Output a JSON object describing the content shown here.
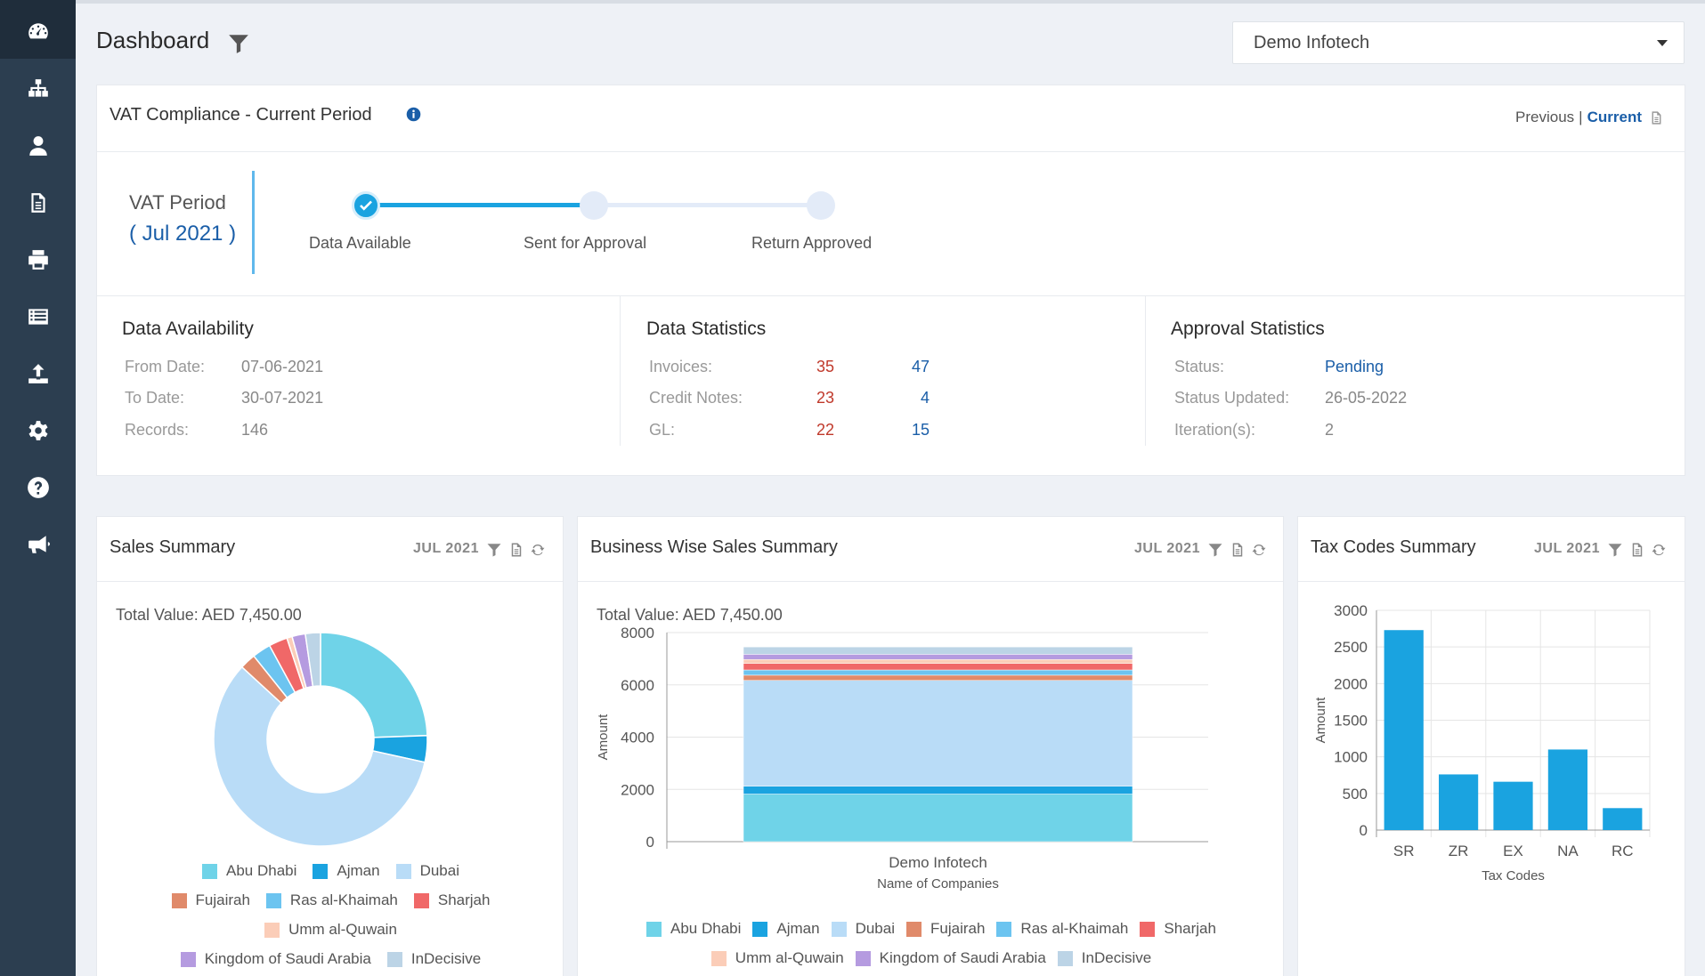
{
  "header": {
    "title": "Dashboard",
    "company_selected": "Demo Infotech"
  },
  "sidebar": {
    "icons": [
      "dashboard-gauge-icon",
      "sitemap-icon",
      "user-icon",
      "document-icon",
      "printer-icon",
      "list-icon",
      "upload-icon",
      "gear-icon",
      "help-icon",
      "megaphone-icon"
    ]
  },
  "vat_card": {
    "title": "VAT Compliance - Current Period",
    "previous_label": "Previous",
    "separator": "|",
    "current_label": "Current",
    "period_label": "VAT Period",
    "period_value": "( Jul 2021 )",
    "steps": [
      {
        "label": "Data Available",
        "done": true
      },
      {
        "label": "Sent for Approval",
        "done": false
      },
      {
        "label": "Return Approved",
        "done": false
      }
    ],
    "data_availability": {
      "title": "Data Availability",
      "rows": [
        {
          "label": "From Date:",
          "value": "07-06-2021"
        },
        {
          "label": "To Date:",
          "value": "30-07-2021"
        },
        {
          "label": "Records:",
          "value": "146"
        }
      ]
    },
    "data_statistics": {
      "title": "Data Statistics",
      "rows": [
        {
          "label": "Invoices:",
          "a": "35",
          "b": "47"
        },
        {
          "label": "Credit Notes:",
          "a": "23",
          "b": "4"
        },
        {
          "label": "GL:",
          "a": "22",
          "b": "15"
        }
      ]
    },
    "approval_statistics": {
      "title": "Approval Statistics",
      "rows": [
        {
          "label": "Status:",
          "value": "Pending"
        },
        {
          "label": "Status Updated:",
          "value": "26-05-2022"
        },
        {
          "label": "Iteration(s):",
          "value": "2"
        }
      ]
    }
  },
  "colors": {
    "Abu Dhabi": "#6fd3e8",
    "Ajman": "#1aa3e0",
    "Dubai": "#b9dcf7",
    "Fujairah": "#e08a6a",
    "Ras al-Khaimah": "#6cc4f0",
    "Sharjah": "#f06868",
    "Umm al-Quwain": "#fbcdb8",
    "Kingdom of Saudi Arabia": "#b59be0",
    "InDecisive": "#bcd4e6",
    "bar": "#1aa3e0",
    "accent": "#1a5ea8"
  },
  "sales_summary": {
    "title": "Sales Summary",
    "period": "JUL 2021",
    "total": "Total Value: AED 7,450.00",
    "legend": [
      "Abu Dhabi",
      "Ajman",
      "Dubai",
      "Fujairah",
      "Ras al-Khaimah",
      "Sharjah",
      "Umm al-Quwain",
      "Kingdom of Saudi Arabia",
      "InDecisive"
    ]
  },
  "business_summary": {
    "title": "Business Wise Sales Summary",
    "period": "JUL 2021",
    "total": "Total Value: AED 7,450.00",
    "legend": [
      "Abu Dhabi",
      "Ajman",
      "Dubai",
      "Fujairah",
      "Ras al-Khaimah",
      "Sharjah",
      "Umm al-Quwain",
      "Kingdom of Saudi Arabia",
      "InDecisive"
    ]
  },
  "tax_summary": {
    "title": "Tax Codes Summary",
    "period": "JUL 2021"
  },
  "chart_data": [
    {
      "type": "pie",
      "title": "",
      "categories": [
        "Abu Dhabi",
        "Ajman",
        "Dubai",
        "Fujairah",
        "Ras al-Khaimah",
        "Sharjah",
        "Umm al-Quwain",
        "Kingdom of Saudi Arabia",
        "InDecisive"
      ],
      "values": [
        1820,
        300,
        4350,
        180,
        210,
        210,
        60,
        150,
        170
      ]
    },
    {
      "type": "bar",
      "title": "",
      "xlabel": "Name of Companies",
      "ylabel": "Amount",
      "categories": [
        "Demo Infotech"
      ],
      "stacked": true,
      "ylim": [
        0,
        8000
      ],
      "yticks": [
        0,
        2000,
        4000,
        6000,
        8000
      ],
      "series": [
        {
          "name": "Abu Dhabi",
          "values": [
            1820
          ]
        },
        {
          "name": "Ajman",
          "values": [
            300
          ]
        },
        {
          "name": "Dubai",
          "values": [
            4050
          ]
        },
        {
          "name": "Fujairah",
          "values": [
            200
          ]
        },
        {
          "name": "Ras al-Khaimah",
          "values": [
            200
          ]
        },
        {
          "name": "Sharjah",
          "values": [
            250
          ]
        },
        {
          "name": "Umm al-Quwain",
          "values": [
            150
          ]
        },
        {
          "name": "Kingdom of Saudi Arabia",
          "values": [
            200
          ]
        },
        {
          "name": "InDecisive",
          "values": [
            280
          ]
        }
      ]
    },
    {
      "type": "bar",
      "title": "",
      "xlabel": "Tax Codes",
      "ylabel": "Amount",
      "categories": [
        "SR",
        "ZR",
        "EX",
        "NA",
        "RC"
      ],
      "values": [
        2730,
        760,
        660,
        1100,
        300
      ],
      "ylim": [
        0,
        3000
      ],
      "yticks": [
        0,
        500,
        1000,
        1500,
        2000,
        2500,
        3000
      ],
      "grid": true
    }
  ]
}
